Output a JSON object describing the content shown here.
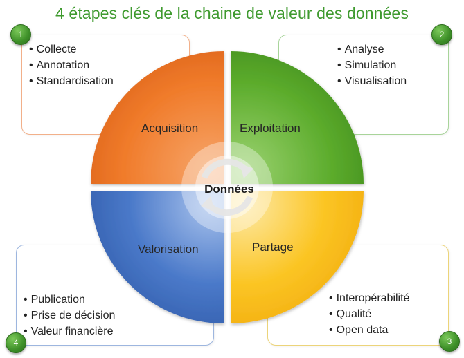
{
  "title": "4 étapes clés de la chaine de valeur des données",
  "center": {
    "label": "Données"
  },
  "colors": {
    "acquisition": "#f07b2a",
    "exploitation": "#5cac2c",
    "partage": "#fbc524",
    "valorisation": "#4a79c9",
    "badge": "#3d8f28",
    "title": "#3f9a2f"
  },
  "steps": [
    {
      "number": "1",
      "quadrant": "Acquisition",
      "items": [
        "Collecte",
        "Annotation",
        "Standardisation"
      ]
    },
    {
      "number": "2",
      "quadrant": "Exploitation",
      "items": [
        "Analyse",
        "Simulation",
        "Visualisation"
      ]
    },
    {
      "number": "3",
      "quadrant": "Partage",
      "items": [
        "Interopérabilité",
        "Qualité",
        "Open data"
      ]
    },
    {
      "number": "4",
      "quadrant": "Valorisation",
      "items": [
        "Publication",
        "Prise de décision",
        "Valeur financière"
      ]
    }
  ]
}
